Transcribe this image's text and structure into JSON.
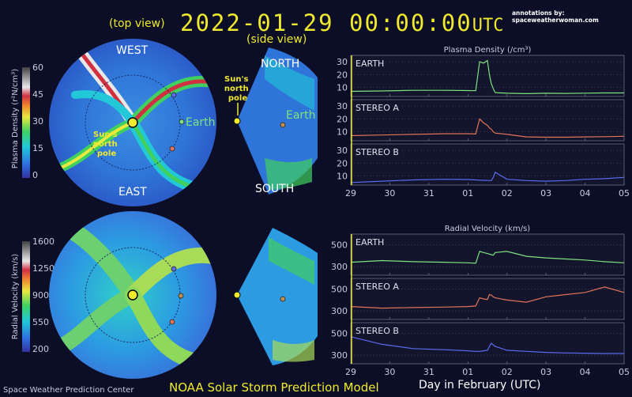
{
  "header": {
    "timestamp": "2022-01-29  00:00:00",
    "timezone": "UTC",
    "top_view_label": "(top view)",
    "side_view_label": "(side view)",
    "annotation_credit": "annotations by: spaceweatherwoman.com"
  },
  "top_view_panel": {
    "west_label": "WEST",
    "east_label": "EAST",
    "earth_label": "Earth",
    "sun_pole_label": [
      "Sun's",
      "north",
      "pole"
    ]
  },
  "side_view_panel": {
    "north_label": "NORTH",
    "south_label": "SOUTH",
    "earth_label": "Earth",
    "sun_pole_label": [
      "Sun's",
      "north",
      "pole"
    ]
  },
  "colorbars": {
    "density": {
      "label": "Plasma Density (r²N/cm³)",
      "ticks": [
        "60",
        "45",
        "30",
        "15",
        "0"
      ]
    },
    "velocity": {
      "label": "Radial Velocity (km/s)",
      "ticks": [
        "1600",
        "1250",
        "900",
        "550",
        "200"
      ]
    }
  },
  "colors": {
    "background": "#0b0e26",
    "accent_yellow": "#f0ea2e",
    "earth": "#7ee37e",
    "stereo_a": "#e2745a",
    "stereo_b": "#5a6cf0"
  },
  "footer": {
    "left": "Space Weather Prediction Center",
    "center": "NOAA Solar Storm Prediction Model",
    "right": "Day in February (UTC)"
  },
  "chart_data": [
    {
      "type": "line",
      "title": "Plasma Density (/cm³)",
      "x_tick_labels": [
        "29",
        "30",
        "31",
        "01",
        "02",
        "03",
        "04",
        "05"
      ],
      "x": [
        0,
        0.8,
        1.6,
        2.4,
        3.0,
        3.2,
        3.3,
        3.4,
        3.5,
        3.55,
        3.6,
        3.65,
        3.7,
        4.0,
        4.5,
        5.0,
        5.5,
        6.0,
        6.5,
        7.0
      ],
      "panels": [
        {
          "name": "EARTH",
          "color": "#7ee37e",
          "yticks": [
            10,
            20,
            30
          ],
          "ylim": [
            3,
            35
          ],
          "y": [
            7,
            7.3,
            7.8,
            7.8,
            7.6,
            7.5,
            30,
            29,
            31,
            20,
            13,
            9,
            6,
            5.5,
            5.2,
            5.5,
            5.4,
            5.6,
            5.8,
            5.8
          ]
        },
        {
          "name": "STEREO A",
          "color": "#e2745a",
          "yticks": [
            10,
            20,
            30
          ],
          "ylim": [
            3,
            35
          ],
          "y": [
            7,
            7.5,
            8,
            8.5,
            8.5,
            8.3,
            20,
            17,
            15,
            13,
            12,
            10,
            9,
            8,
            6,
            5.8,
            5.8,
            6,
            6.2,
            6.5
          ]
        },
        {
          "name": "STEREO B",
          "color": "#5a6cf0",
          "yticks": [
            10,
            20,
            30
          ],
          "ylim": [
            3,
            35
          ],
          "y": [
            5,
            6,
            7,
            7.5,
            7.3,
            7,
            6.8,
            6.7,
            6.6,
            6.5,
            6.5,
            9,
            13,
            7.5,
            6.5,
            6,
            6.5,
            7.5,
            8,
            9
          ]
        }
      ]
    },
    {
      "type": "line",
      "title": "Radial Velocity (km/s)",
      "x_tick_labels": [
        "29",
        "30",
        "31",
        "01",
        "02",
        "03",
        "04",
        "05"
      ],
      "x": [
        0,
        0.8,
        1.6,
        2.4,
        3.0,
        3.2,
        3.3,
        3.4,
        3.5,
        3.55,
        3.6,
        3.65,
        3.7,
        4.0,
        4.5,
        5.0,
        5.5,
        6.0,
        6.5,
        7.0
      ],
      "panels": [
        {
          "name": "EARTH",
          "color": "#7ee37e",
          "yticks": [
            300,
            500
          ],
          "ylim": [
            220,
            600
          ],
          "y": [
            340,
            355,
            345,
            340,
            335,
            330,
            440,
            430,
            420,
            415,
            410,
            405,
            430,
            440,
            395,
            380,
            370,
            360,
            345,
            335
          ]
        },
        {
          "name": "STEREO A",
          "color": "#e2745a",
          "yticks": [
            300,
            500
          ],
          "ylim": [
            220,
            600
          ],
          "y": [
            340,
            325,
            330,
            335,
            340,
            345,
            420,
            410,
            405,
            450,
            445,
            430,
            420,
            400,
            380,
            430,
            450,
            470,
            520,
            470
          ]
        },
        {
          "name": "STEREO B",
          "color": "#5a6cf0",
          "yticks": [
            300,
            500
          ],
          "ylim": [
            220,
            600
          ],
          "y": [
            470,
            400,
            360,
            350,
            340,
            335,
            335,
            340,
            345,
            380,
            410,
            395,
            380,
            345,
            335,
            325,
            320,
            318,
            315,
            315
          ]
        }
      ]
    }
  ]
}
